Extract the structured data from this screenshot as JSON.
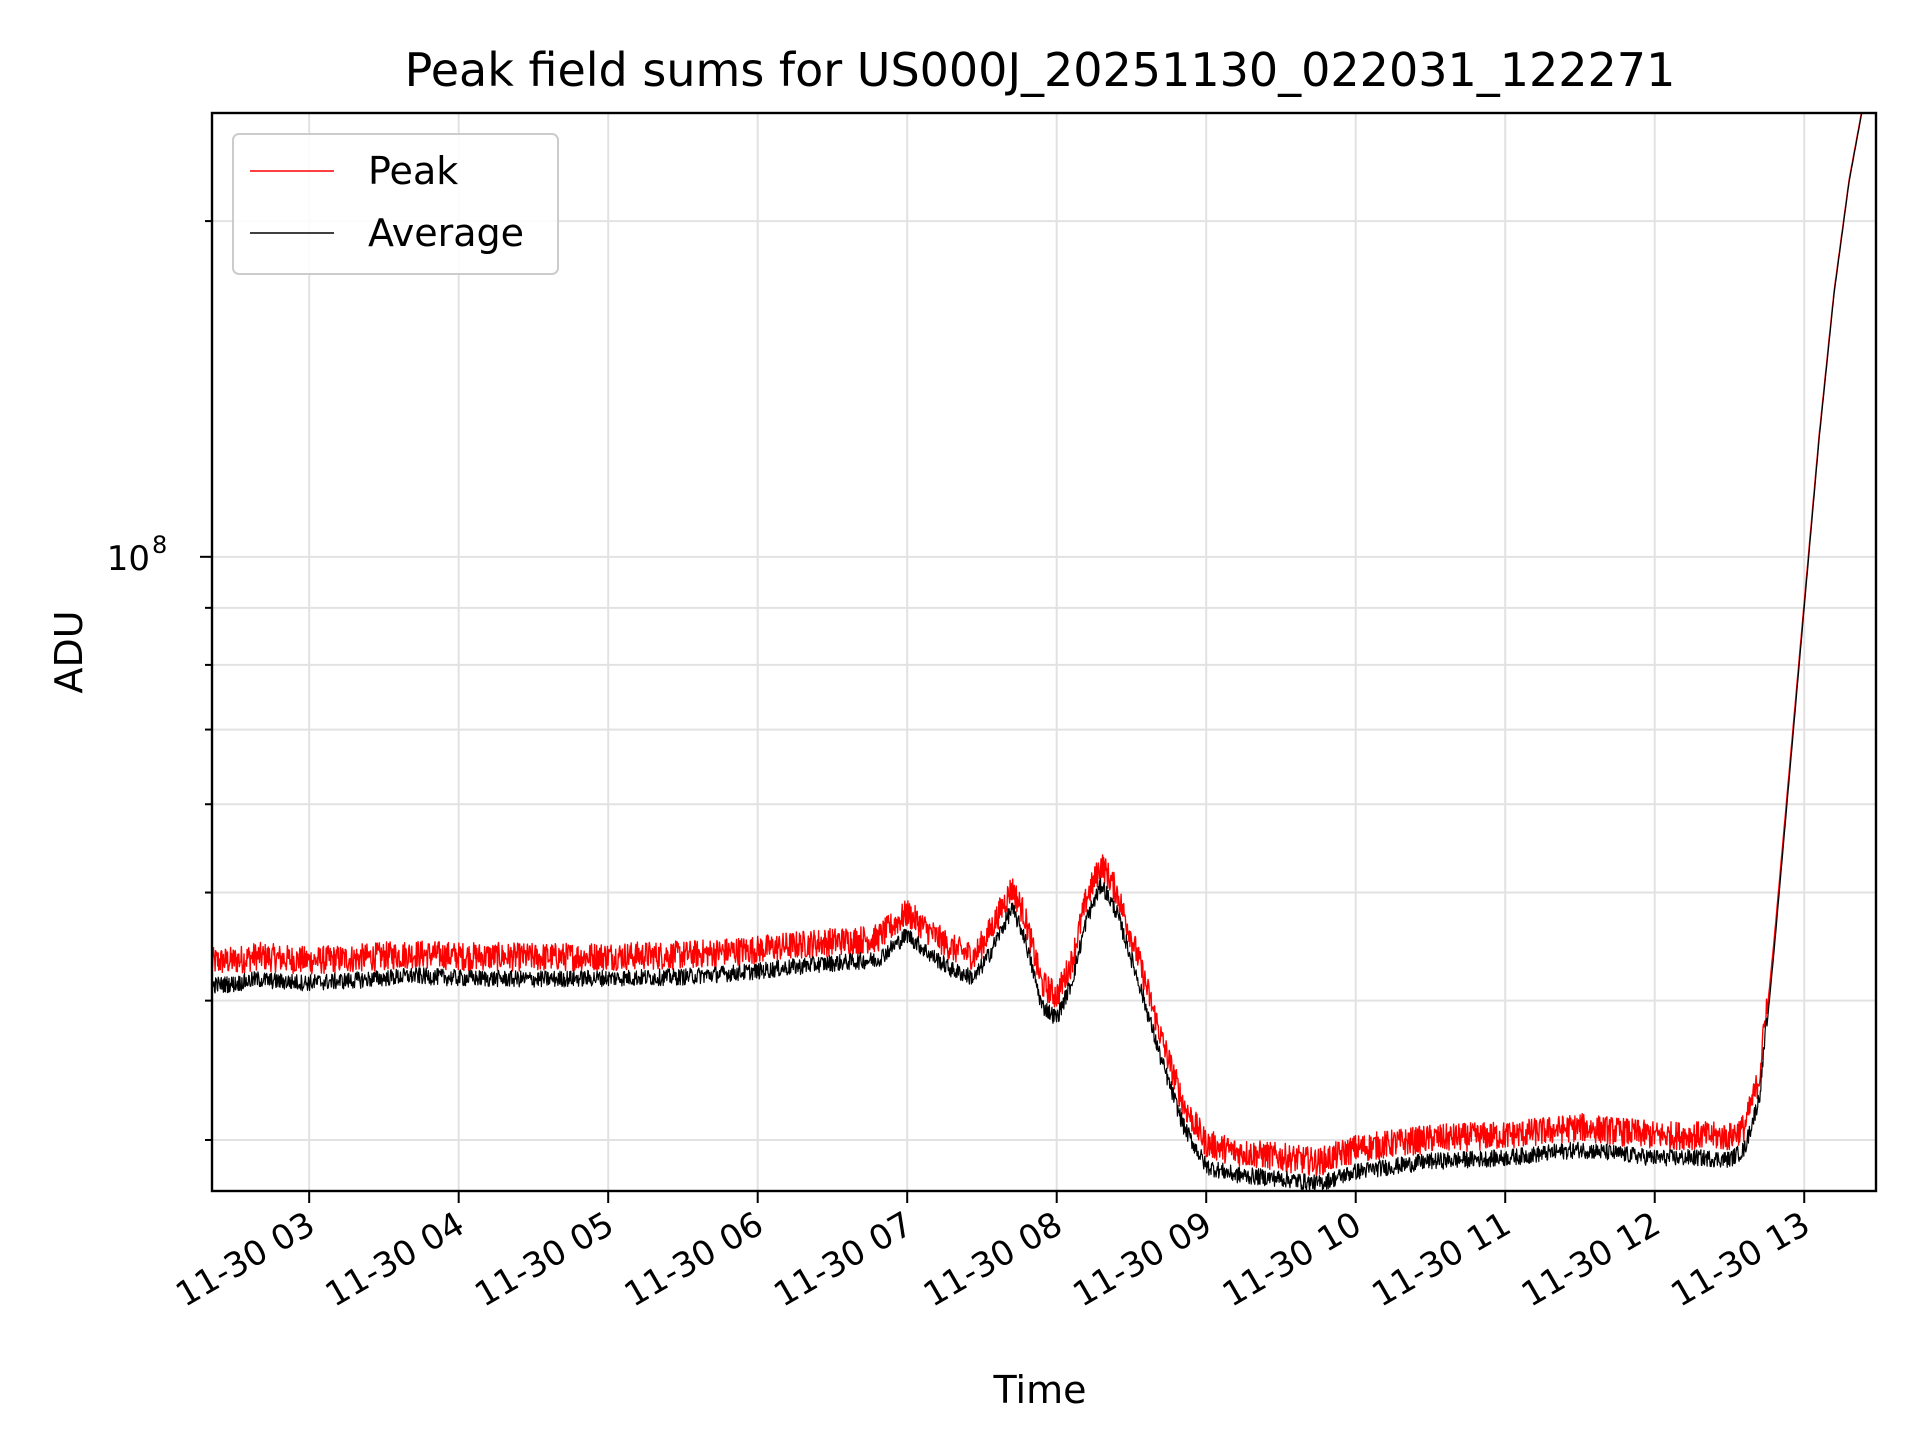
{
  "chart_data": {
    "type": "line",
    "title": "Peak field sums for US000J_20251130_022031_122271",
    "xlabel": "Time",
    "ylabel": "ADU",
    "yscale": "log",
    "ylim": [
      27000000,
      250000000
    ],
    "xlim": [
      2.35,
      13.48
    ],
    "x_ticks": [
      {
        "x": 3,
        "label": "11-30 03"
      },
      {
        "x": 4,
        "label": "11-30 04"
      },
      {
        "x": 5,
        "label": "11-30 05"
      },
      {
        "x": 6,
        "label": "11-30 06"
      },
      {
        "x": 7,
        "label": "11-30 07"
      },
      {
        "x": 8,
        "label": "11-30 08"
      },
      {
        "x": 9,
        "label": "11-30 09"
      },
      {
        "x": 10,
        "label": "11-30 10"
      },
      {
        "x": 11,
        "label": "11-30 11"
      },
      {
        "x": 12,
        "label": "11-30 12"
      },
      {
        "x": 13,
        "label": "11-30 13"
      }
    ],
    "y_major_ticks": [
      {
        "value": 100000000,
        "base": "10",
        "exp": "8"
      }
    ],
    "y_minor_ticks": [
      30000000,
      40000000,
      50000000,
      60000000,
      70000000,
      80000000,
      90000000,
      200000000
    ],
    "grid": true,
    "legend_position": "upper-left",
    "x": [
      2.35,
      2.5,
      2.65,
      2.8,
      3.0,
      3.3,
      3.7,
      4.0,
      4.5,
      5.0,
      5.5,
      6.0,
      6.4,
      6.8,
      7.0,
      7.15,
      7.3,
      7.45,
      7.55,
      7.7,
      7.78,
      7.9,
      8.0,
      8.1,
      8.2,
      8.3,
      8.4,
      8.55,
      8.7,
      8.85,
      9.0,
      9.2,
      9.5,
      9.75,
      10.0,
      10.5,
      11.0,
      11.5,
      12.0,
      12.3,
      12.5,
      12.6,
      12.7,
      12.8,
      12.9,
      13.0,
      13.1,
      13.2,
      13.3,
      13.4
    ],
    "series": [
      {
        "name": "Peak",
        "color": "#ff0000",
        "values": [
          42500000,
          42600000,
          43000000,
          42800000,
          42600000,
          42800000,
          43200000,
          43000000,
          42900000,
          43000000,
          43100000,
          43600000,
          44200000,
          44600000,
          47000000,
          45200000,
          43700000,
          43000000,
          45200000,
          49500000,
          47000000,
          40600000,
          39600000,
          42500000,
          48500000,
          52000000,
          49200000,
          42600000,
          36300000,
          31600000,
          29200000,
          28700000,
          28400000,
          28100000,
          28900000,
          29500000,
          29700000,
          30200000,
          29700000,
          29700000,
          29600000,
          30200000,
          33500000,
          46000000,
          65000000,
          92000000,
          130000000,
          175000000,
          220000000,
          260000000
        ]
      },
      {
        "name": "Average",
        "color": "#000000",
        "values": [
          41000000,
          41100000,
          41500000,
          41300000,
          41200000,
          41400000,
          41800000,
          41600000,
          41500000,
          41600000,
          41700000,
          42200000,
          42800000,
          43200000,
          45500000,
          43700000,
          42300000,
          41600000,
          43700000,
          48000000,
          45500000,
          39300000,
          38300000,
          41200000,
          47000000,
          50500000,
          47700000,
          41200000,
          35100000,
          30600000,
          28200000,
          27700000,
          27500000,
          27200000,
          27900000,
          28500000,
          28700000,
          29200000,
          28700000,
          28700000,
          28600000,
          29200000,
          32500000,
          45000000,
          64000000,
          91000000,
          129000000,
          174000000,
          219000000,
          259000000
        ]
      }
    ]
  }
}
